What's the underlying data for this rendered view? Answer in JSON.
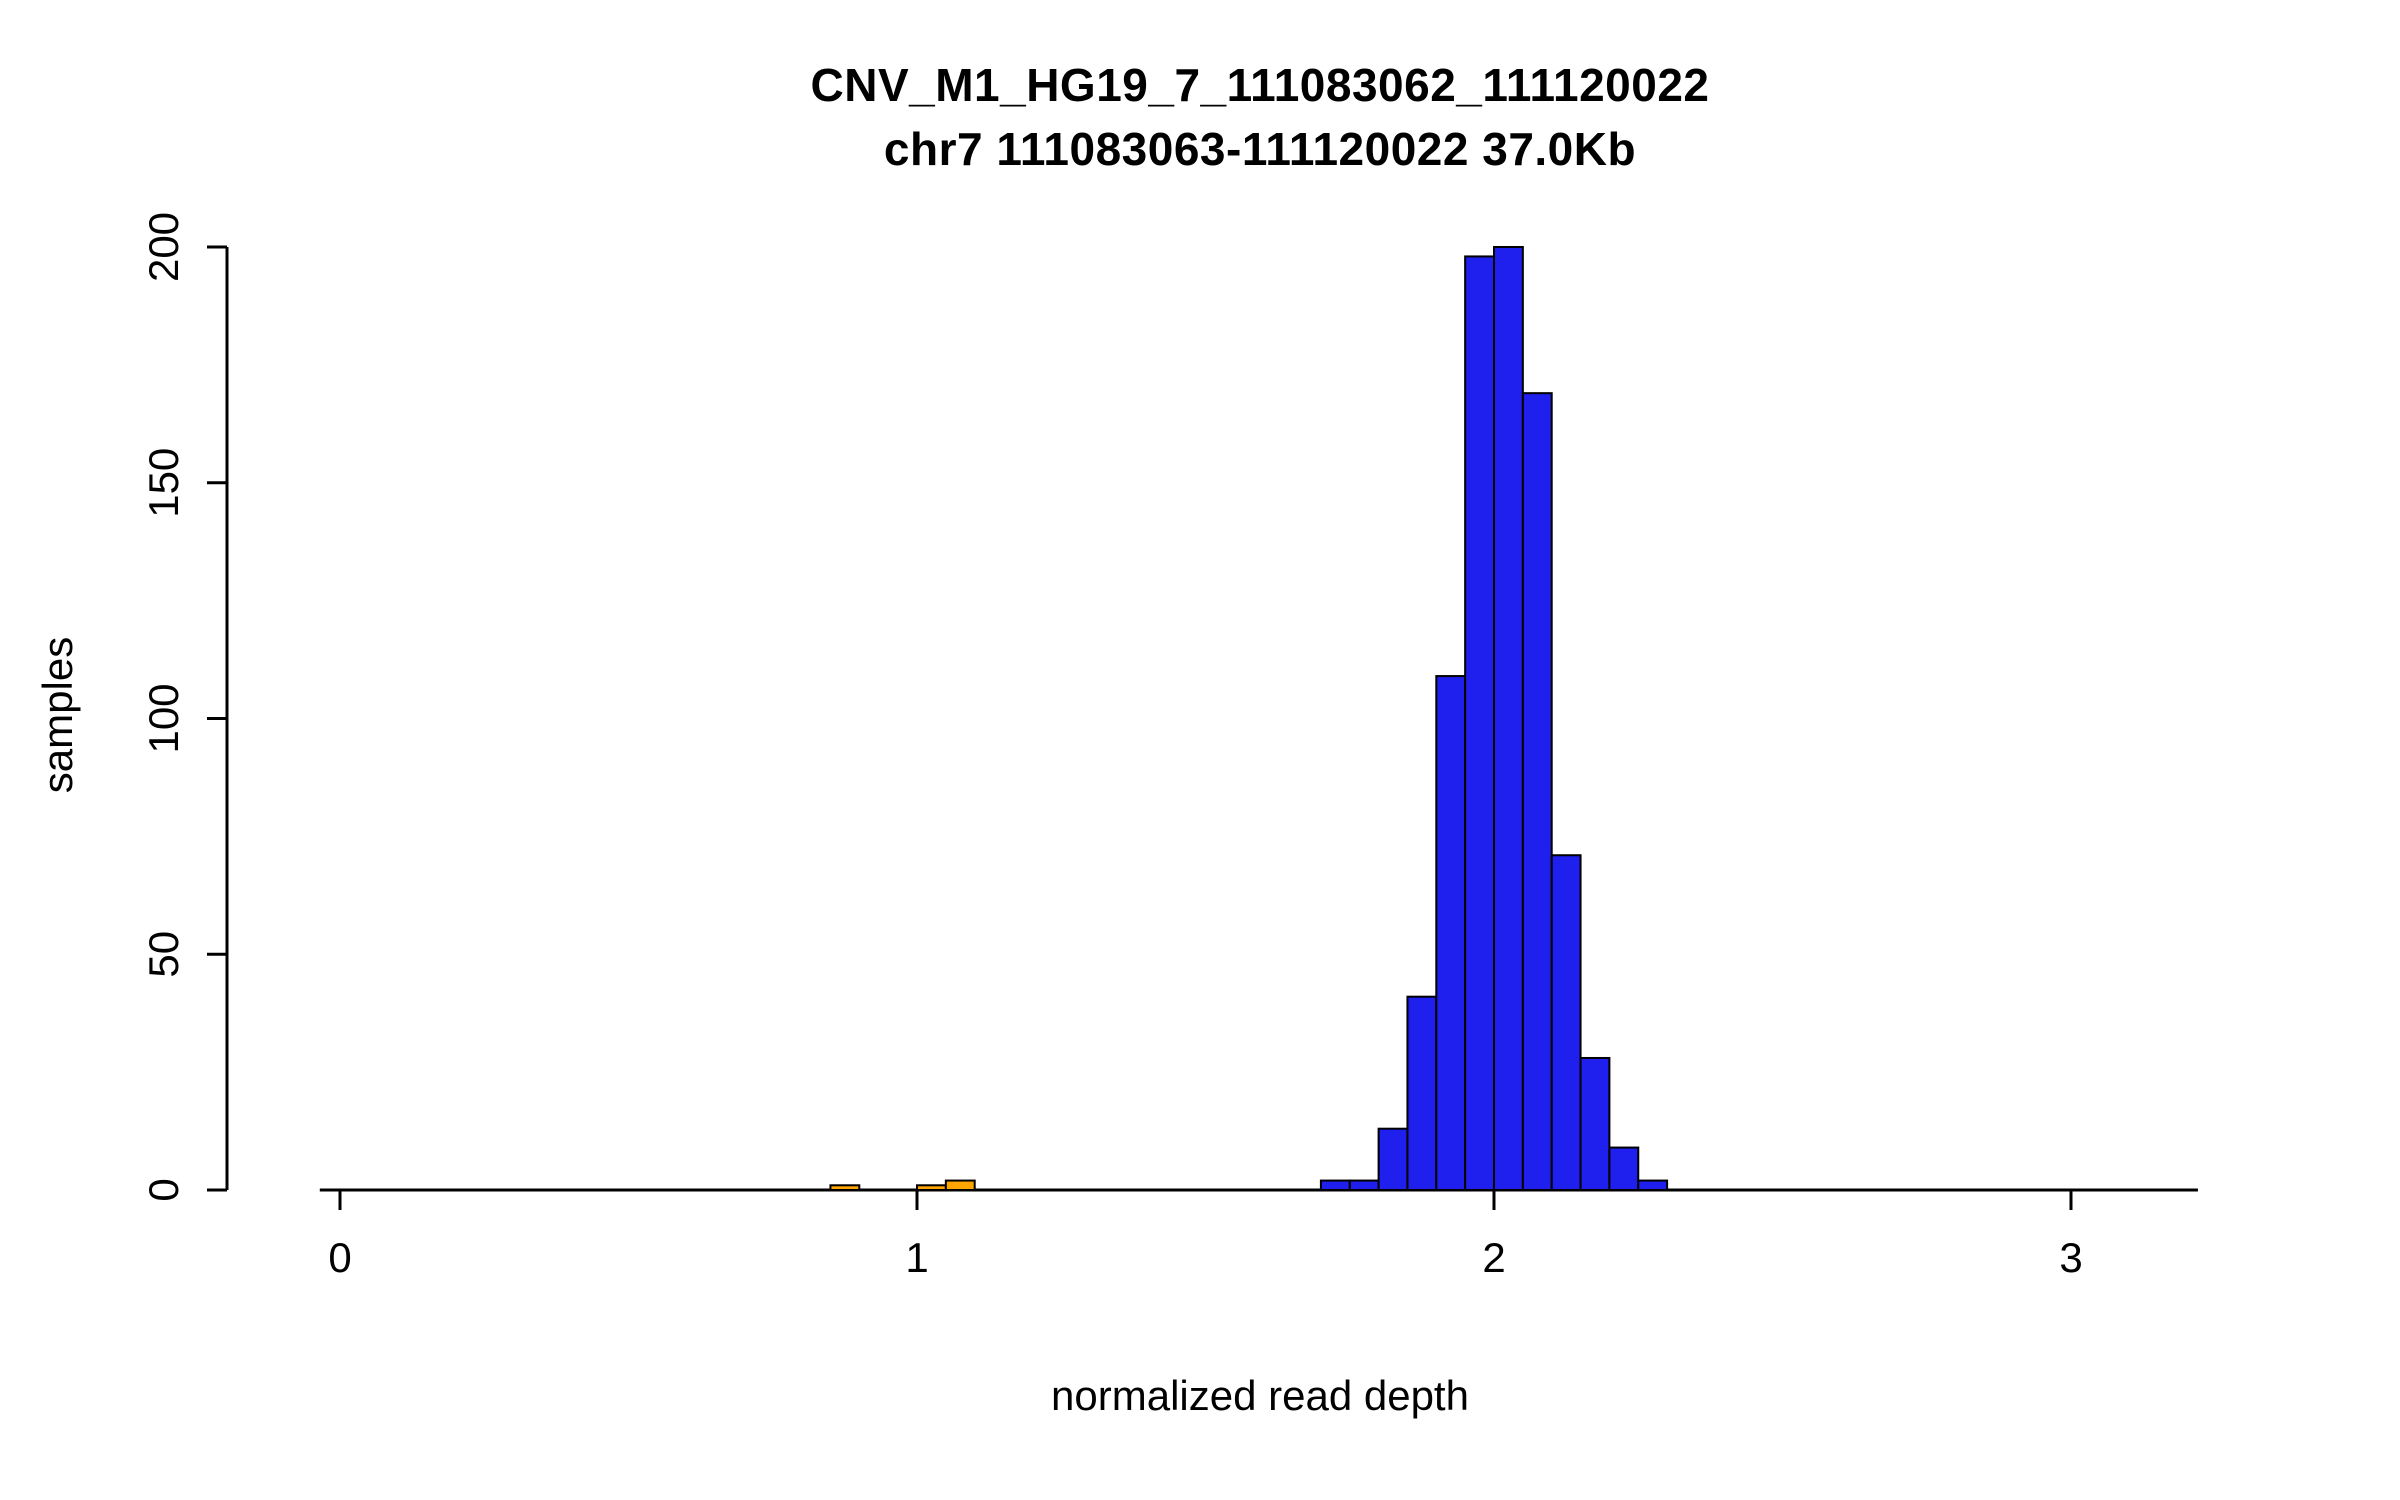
{
  "chart_data": {
    "type": "bar",
    "title": "CNV_M1_HG19_7_111083062_111120022",
    "subtitle": "chr7 111083063-111120022 37.0Kb",
    "xlabel": "normalized read depth",
    "ylabel": "samples",
    "xlim": [
      0,
      3.25
    ],
    "ylim": [
      0,
      200
    ],
    "x_ticks": [
      0,
      1,
      2,
      3
    ],
    "y_ticks": [
      0,
      50,
      100,
      150,
      200
    ],
    "bin_width": 0.05,
    "grid": false,
    "legend": "none",
    "colors": {
      "main": "#2020ee",
      "outlier": "#ffa500",
      "stroke": "#000000",
      "axis": "#000000"
    },
    "bins": [
      {
        "x": 0.85,
        "count": 1,
        "color": "outlier"
      },
      {
        "x": 1.0,
        "count": 1,
        "color": "outlier"
      },
      {
        "x": 1.05,
        "count": 2,
        "color": "outlier"
      },
      {
        "x": 1.7,
        "count": 2,
        "color": "main"
      },
      {
        "x": 1.75,
        "count": 2,
        "color": "main"
      },
      {
        "x": 1.8,
        "count": 13,
        "color": "main"
      },
      {
        "x": 1.85,
        "count": 41,
        "color": "main"
      },
      {
        "x": 1.9,
        "count": 109,
        "color": "main"
      },
      {
        "x": 1.95,
        "count": 198,
        "color": "main"
      },
      {
        "x": 2.0,
        "count": 200,
        "color": "main"
      },
      {
        "x": 2.05,
        "count": 169,
        "color": "main"
      },
      {
        "x": 2.1,
        "count": 71,
        "color": "main"
      },
      {
        "x": 2.15,
        "count": 28,
        "color": "main"
      },
      {
        "x": 2.2,
        "count": 9,
        "color": "main"
      },
      {
        "x": 2.25,
        "count": 2,
        "color": "main"
      }
    ]
  }
}
